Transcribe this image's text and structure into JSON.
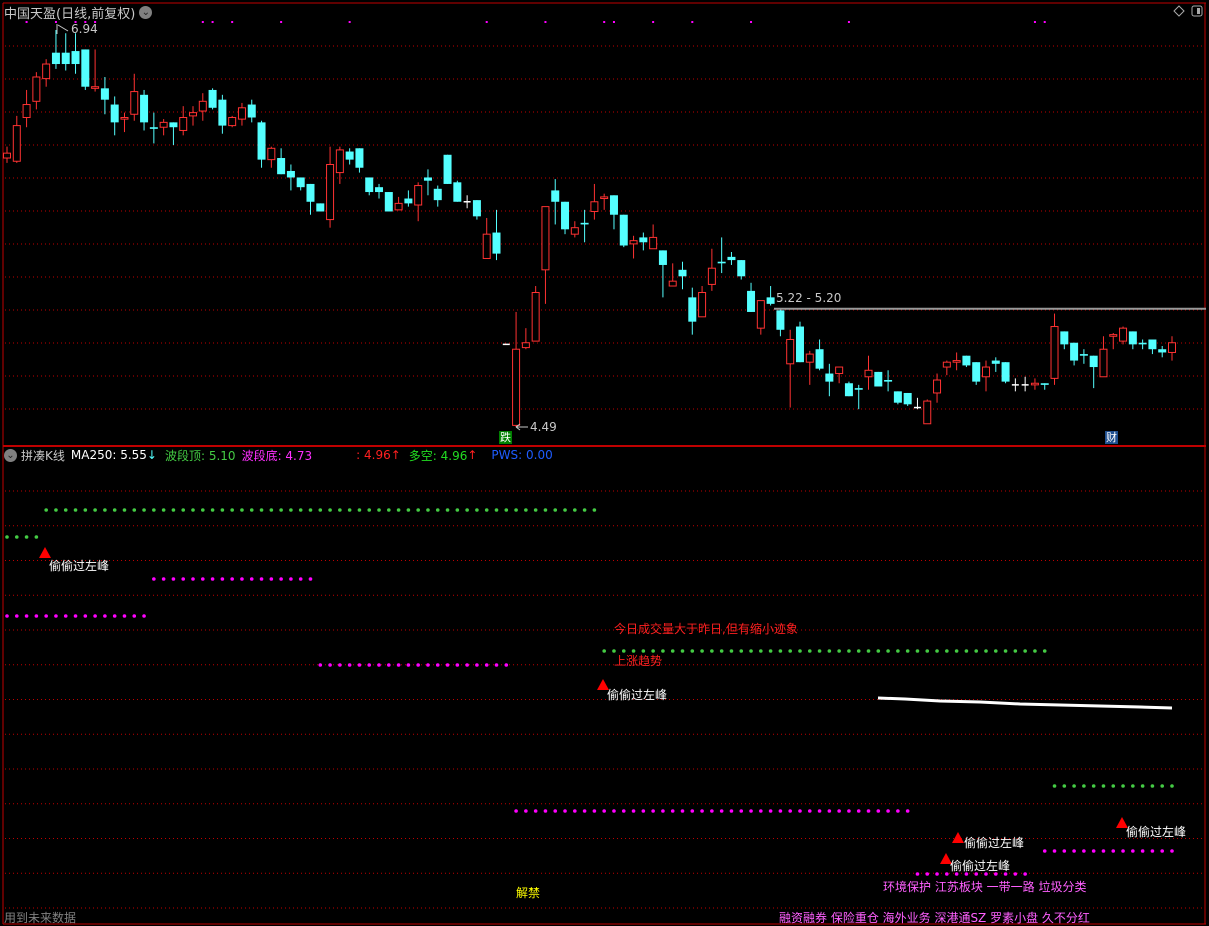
{
  "header": {
    "title": "中国天盈(日线,前复权)",
    "menu_icon": "chevron-down-icon",
    "right_icons": [
      "diamond-icon",
      "panel-toggle-icon"
    ]
  },
  "colors": {
    "background": "#000000",
    "up": "#ff3232",
    "down": "#54ffff",
    "flat": "#ffffff",
    "grid": "#c00000",
    "border": "#c00000",
    "green": "#44cc44",
    "magenta": "#ff00ff",
    "blue": "#1e5cff"
  },
  "chart_data": {
    "type": "candlestick",
    "price_high_label": "6.94",
    "price_low_label": "4.49",
    "range_label": "5.22 - 5.20",
    "range_line_price": 5.22,
    "ohlc": [
      [
        6.15,
        6.22,
        6.12,
        6.18
      ],
      [
        6.13,
        6.41,
        6.12,
        6.35
      ],
      [
        6.4,
        6.57,
        6.34,
        6.48
      ],
      [
        6.5,
        6.68,
        6.45,
        6.65
      ],
      [
        6.64,
        6.76,
        6.59,
        6.73
      ],
      [
        6.8,
        6.94,
        6.7,
        6.73
      ],
      [
        6.8,
        6.92,
        6.69,
        6.73
      ],
      [
        6.81,
        6.92,
        6.67,
        6.73
      ],
      [
        6.82,
        6.82,
        6.57,
        6.59
      ],
      [
        6.58,
        6.82,
        6.56,
        6.59
      ],
      [
        6.58,
        6.65,
        6.42,
        6.51
      ],
      [
        6.48,
        6.53,
        6.29,
        6.37
      ],
      [
        6.39,
        6.43,
        6.31,
        6.4
      ],
      [
        6.42,
        6.67,
        6.38,
        6.56
      ],
      [
        6.54,
        6.57,
        6.32,
        6.37
      ],
      [
        6.34,
        6.43,
        6.24,
        6.33
      ],
      [
        6.34,
        6.39,
        6.29,
        6.37
      ],
      [
        6.37,
        6.37,
        6.23,
        6.34
      ],
      [
        6.32,
        6.47,
        6.29,
        6.4
      ],
      [
        6.41,
        6.47,
        6.35,
        6.43
      ],
      [
        6.44,
        6.55,
        6.38,
        6.5
      ],
      [
        6.57,
        6.58,
        6.45,
        6.46
      ],
      [
        6.51,
        6.54,
        6.3,
        6.35
      ],
      [
        6.35,
        6.41,
        6.34,
        6.4
      ],
      [
        6.39,
        6.49,
        6.35,
        6.46
      ],
      [
        6.48,
        6.51,
        6.37,
        6.4
      ],
      [
        6.37,
        6.38,
        6.09,
        6.14
      ],
      [
        6.14,
        6.22,
        6.09,
        6.21
      ],
      [
        6.15,
        6.21,
        6.05,
        6.05
      ],
      [
        6.07,
        6.11,
        5.95,
        6.03
      ],
      [
        6.03,
        6.03,
        5.95,
        5.97
      ],
      [
        5.99,
        5.99,
        5.8,
        5.88
      ],
      [
        5.87,
        5.87,
        5.82,
        5.82
      ],
      [
        5.77,
        6.22,
        5.72,
        6.11
      ],
      [
        6.06,
        6.22,
        5.99,
        6.2
      ],
      [
        6.19,
        6.21,
        6.11,
        6.14
      ],
      [
        6.21,
        6.21,
        6.06,
        6.09
      ],
      [
        6.03,
        6.03,
        5.92,
        5.94
      ],
      [
        5.97,
        5.99,
        5.9,
        5.94
      ],
      [
        5.94,
        5.94,
        5.82,
        5.82
      ],
      [
        5.83,
        5.91,
        5.83,
        5.87
      ],
      [
        5.9,
        5.95,
        5.85,
        5.87
      ],
      [
        5.86,
        6.0,
        5.76,
        5.98
      ],
      [
        6.03,
        6.08,
        5.92,
        6.01
      ],
      [
        5.96,
        5.98,
        5.85,
        5.89
      ],
      [
        6.17,
        6.17,
        5.99,
        5.99
      ],
      [
        6.0,
        6.01,
        5.88,
        5.88
      ],
      [
        5.88,
        5.92,
        5.84,
        5.88
      ],
      [
        5.89,
        5.89,
        5.77,
        5.79
      ],
      [
        5.53,
        5.78,
        5.53,
        5.68
      ],
      [
        5.69,
        5.83,
        5.52,
        5.56
      ],
      [
        5.0,
        5.0,
        5.0,
        5.0
      ],
      [
        4.5,
        5.2,
        4.49,
        4.97
      ],
      [
        4.98,
        5.1,
        4.97,
        5.01
      ],
      [
        5.02,
        5.36,
        5.02,
        5.32
      ],
      [
        5.46,
        5.85,
        5.25,
        5.85
      ],
      [
        5.95,
        6.02,
        5.74,
        5.88
      ],
      [
        5.88,
        5.88,
        5.68,
        5.71
      ],
      [
        5.68,
        5.76,
        5.66,
        5.72
      ],
      [
        5.75,
        5.83,
        5.63,
        5.74
      ],
      [
        5.82,
        5.99,
        5.77,
        5.88
      ],
      [
        5.9,
        5.93,
        5.83,
        5.91
      ],
      [
        5.92,
        5.92,
        5.71,
        5.8
      ],
      [
        5.8,
        5.8,
        5.6,
        5.61
      ],
      [
        5.62,
        5.67,
        5.53,
        5.64
      ],
      [
        5.66,
        5.69,
        5.58,
        5.63
      ],
      [
        5.59,
        5.74,
        5.59,
        5.66
      ],
      [
        5.58,
        5.58,
        5.29,
        5.49
      ],
      [
        5.36,
        5.5,
        5.36,
        5.39
      ],
      [
        5.46,
        5.51,
        5.34,
        5.42
      ],
      [
        5.29,
        5.35,
        5.06,
        5.14
      ],
      [
        5.17,
        5.36,
        5.17,
        5.32
      ],
      [
        5.37,
        5.59,
        5.33,
        5.47
      ],
      [
        5.51,
        5.66,
        5.44,
        5.5
      ],
      [
        5.54,
        5.57,
        5.49,
        5.52
      ],
      [
        5.52,
        5.52,
        5.4,
        5.42
      ],
      [
        5.33,
        5.38,
        5.2,
        5.2
      ],
      [
        5.1,
        5.27,
        5.06,
        5.27
      ],
      [
        5.29,
        5.36,
        5.24,
        5.25
      ],
      [
        5.21,
        5.22,
        5.05,
        5.09
      ],
      [
        4.88,
        5.09,
        4.61,
        5.03
      ],
      [
        5.11,
        5.14,
        4.89,
        4.89
      ],
      [
        4.89,
        4.96,
        4.75,
        4.94
      ],
      [
        4.97,
        5.03,
        4.84,
        4.85
      ],
      [
        4.82,
        4.88,
        4.68,
        4.77
      ],
      [
        4.82,
        4.86,
        4.76,
        4.86
      ],
      [
        4.76,
        4.77,
        4.68,
        4.68
      ],
      [
        4.73,
        4.75,
        4.6,
        4.72
      ],
      [
        4.8,
        4.93,
        4.72,
        4.84
      ],
      [
        4.83,
        4.83,
        4.74,
        4.74
      ],
      [
        4.78,
        4.84,
        4.71,
        4.77
      ],
      [
        4.71,
        4.71,
        4.63,
        4.64
      ],
      [
        4.7,
        4.7,
        4.62,
        4.63
      ],
      [
        4.61,
        4.67,
        4.6,
        4.61
      ],
      [
        4.51,
        4.66,
        4.51,
        4.65
      ],
      [
        4.7,
        4.82,
        4.64,
        4.78
      ],
      [
        4.86,
        4.9,
        4.81,
        4.89
      ],
      [
        4.89,
        4.95,
        4.84,
        4.9
      ],
      [
        4.93,
        4.93,
        4.86,
        4.87
      ],
      [
        4.89,
        4.89,
        4.75,
        4.77
      ],
      [
        4.8,
        4.9,
        4.71,
        4.86
      ],
      [
        4.9,
        4.92,
        4.83,
        4.88
      ],
      [
        4.89,
        4.89,
        4.76,
        4.77
      ],
      [
        4.75,
        4.79,
        4.71,
        4.75
      ],
      [
        4.75,
        4.8,
        4.71,
        4.75
      ],
      [
        4.75,
        4.79,
        4.72,
        4.76
      ],
      [
        4.76,
        4.76,
        4.72,
        4.75
      ],
      [
        4.79,
        5.19,
        4.75,
        5.11
      ],
      [
        5.08,
        5.08,
        4.97,
        5.0
      ],
      [
        5.01,
        5.01,
        4.87,
        4.9
      ],
      [
        4.94,
        4.97,
        4.88,
        4.93
      ],
      [
        4.93,
        4.93,
        4.73,
        4.86
      ],
      [
        4.8,
        5.05,
        4.8,
        4.97
      ],
      [
        5.05,
        5.07,
        4.97,
        5.06
      ],
      [
        5.02,
        5.11,
        5.0,
        5.1
      ],
      [
        5.08,
        5.08,
        4.97,
        5.0
      ],
      [
        5.01,
        5.03,
        4.97,
        5.0
      ],
      [
        5.03,
        5.03,
        4.94,
        4.97
      ],
      [
        4.97,
        4.99,
        4.92,
        4.95
      ],
      [
        4.95,
        5.05,
        4.9,
        5.01
      ]
    ],
    "markers": [
      {
        "label": "跌",
        "color": "#008000"
      },
      {
        "label": "财",
        "color": "#1f4f8f"
      }
    ]
  },
  "indicator": {
    "name": "拼凑K线",
    "ma250": "MA250: 5.55",
    "ma250_arrow": "↓",
    "top": "波段顶: 5.10",
    "bottom": "波段底: 4.73",
    "red_value": ": 4.96",
    "red_arrow": "↑",
    "longshort": "多空: 4.96",
    "longshort_arrow": "↑",
    "pws": "PWS: 0.00"
  },
  "annotations": {
    "peak_label": "偷偷过左峰",
    "volume_note": "今日成交量大于昨日,但有缩小迹象",
    "trend": "上涨趋势",
    "unlock": "解禁",
    "concepts_1": "环境保护 江苏板块 一带一路 垃圾分类",
    "concepts_2": "融资融券 保险重仓 海外业务 深港通SZ 罗素小盘 久不分红",
    "future_data": "用到未来数据"
  }
}
